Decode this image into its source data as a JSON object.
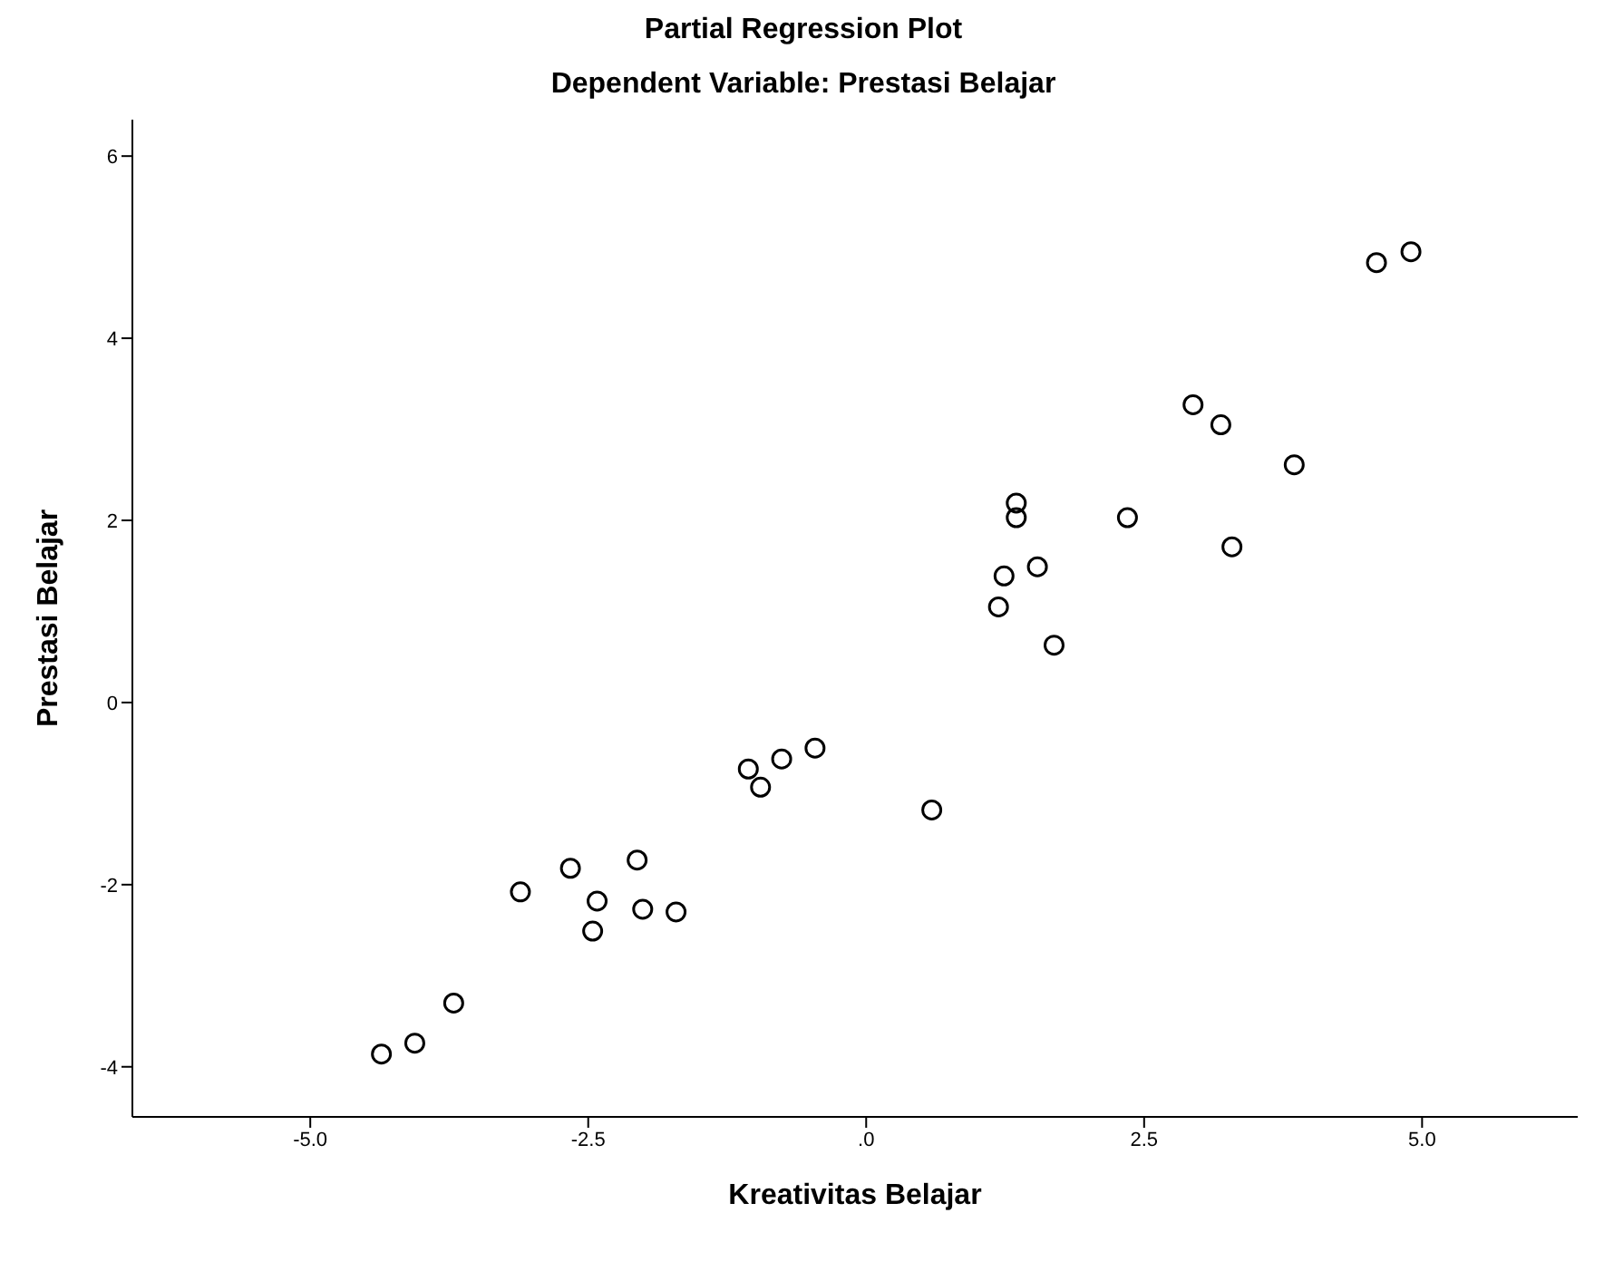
{
  "chart_data": {
    "type": "scatter",
    "title": "Partial Regression Plot",
    "subtitle": "Dependent Variable: Prestasi Belajar",
    "xlabel": "Kreativitas Belajar",
    "ylabel": "Prestasi Belajar",
    "x": [
      -4.36,
      -4.06,
      -3.71,
      -3.11,
      -2.66,
      -2.42,
      -2.46,
      -2.06,
      -2.01,
      -1.71,
      -1.06,
      -0.95,
      -0.76,
      -0.46,
      0.59,
      1.19,
      1.24,
      1.35,
      1.35,
      1.54,
      1.69,
      2.35,
      2.94,
      3.19,
      3.29,
      3.85,
      4.59,
      4.9
    ],
    "values": [
      -3.86,
      -3.74,
      -3.3,
      -2.08,
      -1.82,
      -2.18,
      -2.51,
      -1.73,
      -2.27,
      -2.3,
      -0.73,
      -0.93,
      -0.62,
      -0.5,
      -1.18,
      1.05,
      1.39,
      2.19,
      2.03,
      1.49,
      0.63,
      2.03,
      3.27,
      3.05,
      1.71,
      2.61,
      4.83,
      4.95
    ],
    "color": "#000000",
    "marker": "circle",
    "grid": false,
    "legend": false,
    "xlim": [
      -6.6,
      6.4
    ],
    "ylim": [
      -4.55,
      6.4
    ],
    "xticks": [
      {
        "value": -5,
        "label": "-5.0"
      },
      {
        "value": -2.5,
        "label": "-2.5"
      },
      {
        "value": 0,
        "label": ".0"
      },
      {
        "value": 2.5,
        "label": "2.5"
      },
      {
        "value": 5,
        "label": "5.0"
      }
    ],
    "yticks": [
      -4,
      -2,
      0,
      2,
      4,
      6
    ]
  }
}
